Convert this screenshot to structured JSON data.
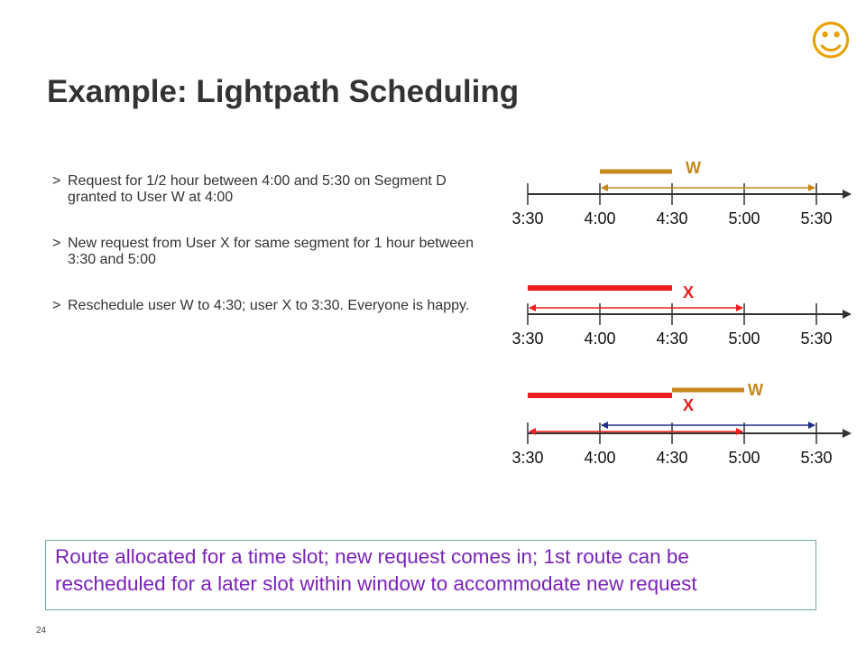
{
  "header": {
    "icon": "smiley-icon",
    "icon_glyph": "☺",
    "icon_color": "#e8a000"
  },
  "title": "Example: Lightpath Scheduling",
  "bullets": [
    {
      "marker": ">",
      "text": "Request for 1/2 hour between 4:00 and 5:30 on Segment D granted to User W at 4:00"
    },
    {
      "marker": ">",
      "text": "New request from User X for same segment for 1 hour between 3:30 and 5:00"
    },
    {
      "marker": ">",
      "text": "Reschedule user W to 4:30; user X to 3:30. Everyone is happy."
    }
  ],
  "timelines": {
    "ticks": [
      "3:30",
      "4:00",
      "4:30",
      "5:00",
      "5:30"
    ],
    "panels": [
      {
        "bars": [
          {
            "user": "W",
            "start": "4:00",
            "end": "4:30",
            "color": "#c6871b"
          }
        ],
        "windows": [
          {
            "start": "4:00",
            "end": "5:30",
            "color": "#c6871b"
          }
        ]
      },
      {
        "bars": [
          {
            "user": "X",
            "start": "3:30",
            "end": "4:30",
            "color": "#ee1c1c"
          }
        ],
        "windows": [
          {
            "start": "3:30",
            "end": "5:00",
            "color": "#ee1c1c"
          }
        ]
      },
      {
        "bars": [
          {
            "user": "W",
            "start": "4:30",
            "end": "5:00",
            "color": "#c6871b"
          },
          {
            "user": "X",
            "start": "3:30",
            "end": "4:30",
            "color": "#ee1c1c"
          }
        ],
        "windows": [
          {
            "start": "4:00",
            "end": "5:30",
            "color": "#1f2f8a"
          },
          {
            "start": "3:30",
            "end": "5:00",
            "color": "#ee1c1c"
          }
        ]
      }
    ]
  },
  "callout": {
    "line1": "Route allocated for a time slot; new request comes in; 1st route can be",
    "line2": "rescheduled for a later slot within window to accommodate new request",
    "text_color": "#7b22b8",
    "border_color": "#6bab94"
  },
  "footer": {
    "page_number": "24"
  }
}
